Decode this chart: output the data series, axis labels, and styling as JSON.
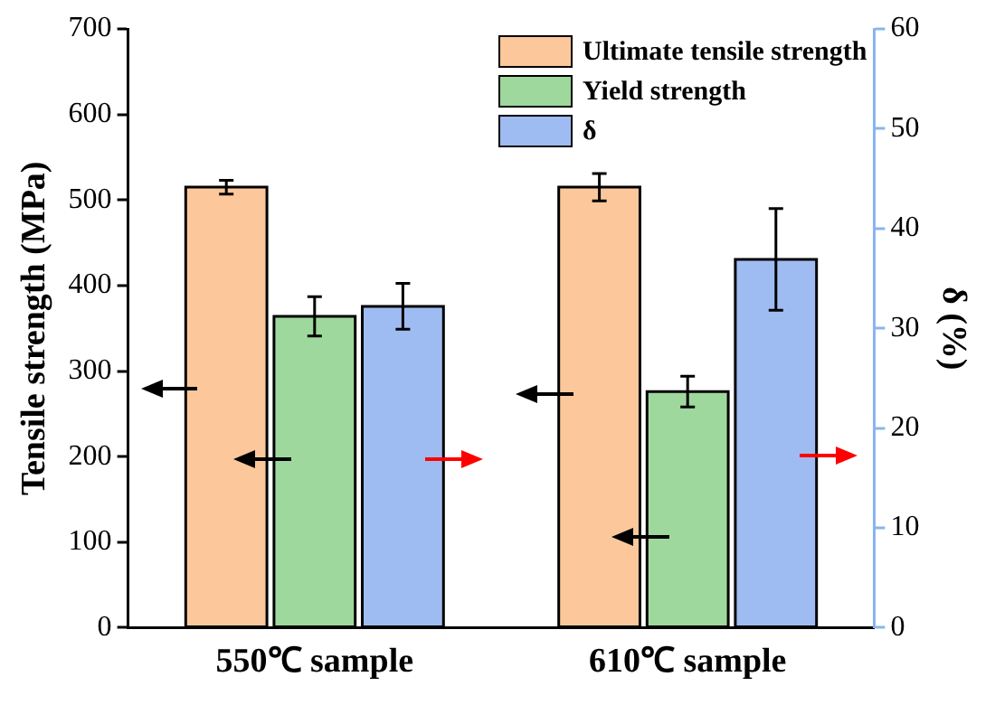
{
  "chart_data": {
    "type": "bar",
    "categories": [
      "550℃ sample",
      "610℃ sample"
    ],
    "ylabel": "Tensile strength (MPa)",
    "y2label": "δ (%)",
    "ylim": [
      0,
      700
    ],
    "yticks": [
      0,
      100,
      200,
      300,
      400,
      500,
      600,
      700
    ],
    "y2lim": [
      0,
      60
    ],
    "y2ticks": [
      0,
      10,
      20,
      30,
      40,
      50,
      60
    ],
    "legend": "top right",
    "grid": false,
    "series": [
      {
        "name": "Ultimate tensile strength",
        "color": "#fcc89b",
        "values": [
          515,
          515
        ],
        "errors": [
          8,
          16
        ]
      },
      {
        "name": "Yield strength",
        "color": "#9ed89c",
        "values": [
          364,
          276
        ],
        "errors": [
          23,
          18
        ]
      },
      {
        "name": "δ",
        "color": "#9fbcf2",
        "values": [
          32.2,
          36.9
        ],
        "errors": [
          2.3,
          5.1
        ],
        "axis": "y2"
      }
    ]
  }
}
